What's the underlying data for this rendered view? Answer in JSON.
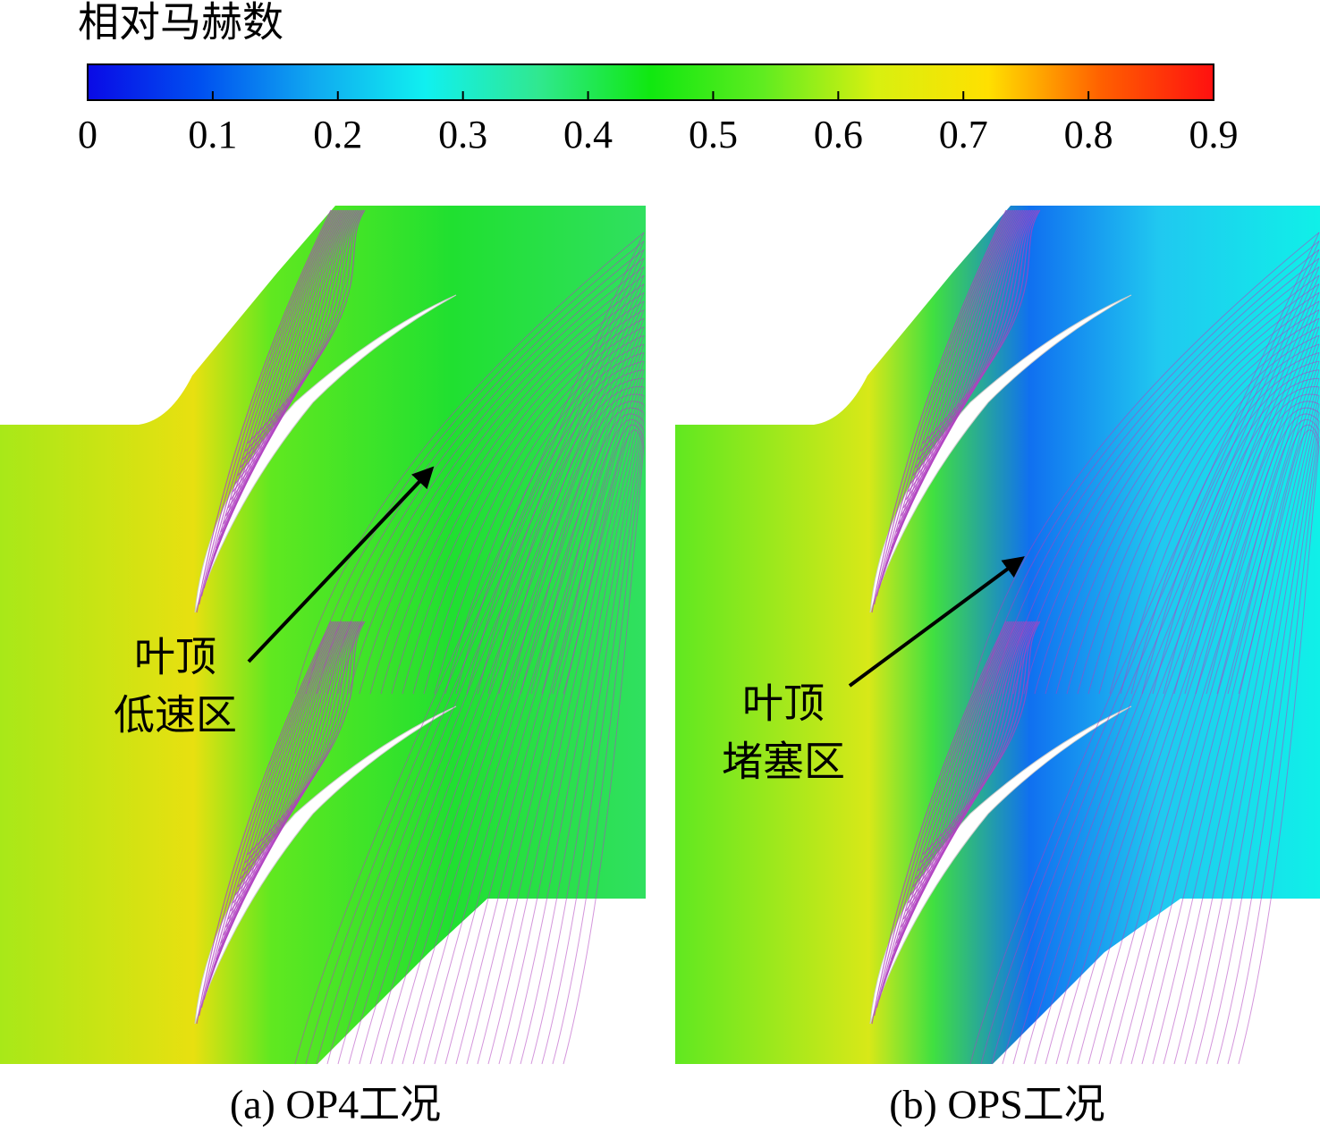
{
  "colorbar": {
    "title": "相对马赫数",
    "lim": [
      0,
      0.9
    ],
    "ticks": [
      0,
      0.1,
      0.2,
      0.3,
      0.4,
      0.5,
      0.6,
      0.7,
      0.8,
      0.9
    ],
    "colors": [
      "#0a0ae6",
      "#0050f0",
      "#10a8f0",
      "#10f0f0",
      "#30e890",
      "#10e810",
      "#60ec20",
      "#d8f010",
      "#ffe000",
      "#ff6000",
      "#ff1010"
    ]
  },
  "panels": [
    {
      "annotation": [
        "叶顶",
        "低速区"
      ],
      "caption": "(a) OP4工况"
    },
    {
      "annotation": [
        "叶顶",
        "堵塞区"
      ],
      "caption": "(b) OPS工况"
    }
  ]
}
